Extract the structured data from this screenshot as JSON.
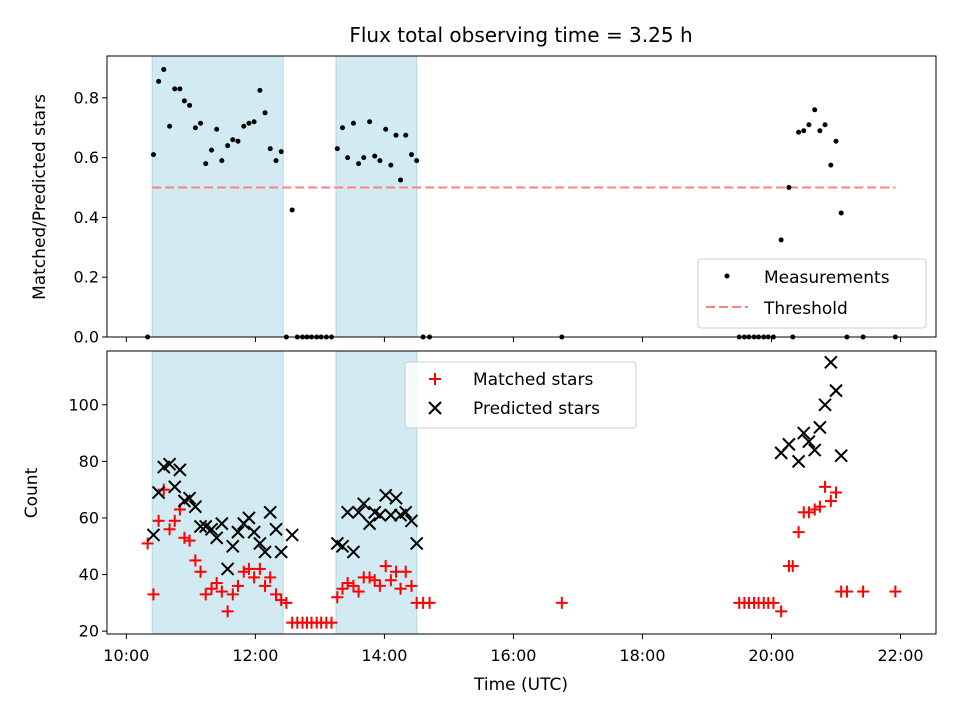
{
  "title": "Flux total observing time = 3.25 h",
  "colors": {
    "shade": "#add8e6",
    "measurement": "#000000",
    "threshold": "#ff8080",
    "matched": "#ff0000",
    "predicted": "#000000"
  },
  "chart_data": [
    {
      "type": "scatter",
      "panel": "top",
      "ylabel": "Matched/Predicted stars",
      "xlim": [
        9.7,
        22.55
      ],
      "ylim": [
        0,
        0.94
      ],
      "yticks": [
        0.0,
        0.2,
        0.4,
        0.6,
        0.8
      ],
      "ytick_labels": [
        "0.0",
        "0.2",
        "0.4",
        "0.6",
        "0.8"
      ],
      "shaded_intervals": [
        [
          10.4,
          12.43
        ],
        [
          13.25,
          14.5
        ]
      ],
      "threshold": {
        "name": "Threshold",
        "y": 0.5,
        "x_range": [
          10.4,
          21.92
        ]
      },
      "legend": {
        "placement": "lower right",
        "entries": [
          "Measurements",
          "Threshold"
        ]
      },
      "series": [
        {
          "name": "Measurements",
          "points": [
            [
              10.33,
              0.0
            ],
            [
              10.42,
              0.61
            ],
            [
              10.5,
              0.855
            ],
            [
              10.58,
              0.895
            ],
            [
              10.67,
              0.705
            ],
            [
              10.75,
              0.83
            ],
            [
              10.83,
              0.83
            ],
            [
              10.9,
              0.79
            ],
            [
              10.98,
              0.775
            ],
            [
              11.07,
              0.7
            ],
            [
              11.15,
              0.715
            ],
            [
              11.23,
              0.58
            ],
            [
              11.32,
              0.625
            ],
            [
              11.4,
              0.695
            ],
            [
              11.48,
              0.59
            ],
            [
              11.57,
              0.64
            ],
            [
              11.65,
              0.66
            ],
            [
              11.73,
              0.655
            ],
            [
              11.82,
              0.705
            ],
            [
              11.9,
              0.715
            ],
            [
              11.98,
              0.72
            ],
            [
              12.07,
              0.825
            ],
            [
              12.15,
              0.75
            ],
            [
              12.23,
              0.63
            ],
            [
              12.32,
              0.59
            ],
            [
              12.4,
              0.62
            ],
            [
              12.48,
              0.0
            ],
            [
              12.57,
              0.425
            ],
            [
              12.65,
              0.0
            ],
            [
              12.73,
              0.0
            ],
            [
              12.8,
              0.0
            ],
            [
              12.87,
              0.0
            ],
            [
              12.95,
              0.0
            ],
            [
              13.02,
              0.0
            ],
            [
              13.1,
              0.0
            ],
            [
              13.18,
              0.0
            ],
            [
              13.27,
              0.63
            ],
            [
              13.35,
              0.7
            ],
            [
              13.43,
              0.6
            ],
            [
              13.52,
              0.715
            ],
            [
              13.6,
              0.58
            ],
            [
              13.68,
              0.6
            ],
            [
              13.77,
              0.72
            ],
            [
              13.85,
              0.605
            ],
            [
              13.93,
              0.59
            ],
            [
              14.02,
              0.695
            ],
            [
              14.1,
              0.575
            ],
            [
              14.18,
              0.675
            ],
            [
              14.25,
              0.525
            ],
            [
              14.33,
              0.675
            ],
            [
              14.42,
              0.61
            ],
            [
              14.5,
              0.59
            ],
            [
              14.6,
              0.0
            ],
            [
              14.7,
              0.0
            ],
            [
              16.75,
              0.0
            ],
            [
              19.5,
              0.0
            ],
            [
              19.58,
              0.0
            ],
            [
              19.65,
              0.0
            ],
            [
              19.73,
              0.0
            ],
            [
              19.8,
              0.0
            ],
            [
              19.88,
              0.0
            ],
            [
              19.95,
              0.0
            ],
            [
              20.03,
              0.0
            ],
            [
              20.15,
              0.325
            ],
            [
              20.27,
              0.5
            ],
            [
              20.33,
              0.0
            ],
            [
              20.42,
              0.685
            ],
            [
              20.5,
              0.69
            ],
            [
              20.58,
              0.71
            ],
            [
              20.67,
              0.76
            ],
            [
              20.75,
              0.69
            ],
            [
              20.83,
              0.71
            ],
            [
              20.92,
              0.575
            ],
            [
              21.0,
              0.655
            ],
            [
              21.08,
              0.415
            ],
            [
              21.17,
              0.0
            ],
            [
              21.42,
              0.0
            ],
            [
              21.92,
              0.0
            ]
          ]
        }
      ]
    },
    {
      "type": "scatter",
      "panel": "bottom",
      "xlabel": "Time (UTC)",
      "ylabel": "Count",
      "xlim": [
        9.7,
        22.55
      ],
      "ylim": [
        19,
        119
      ],
      "xticks": [
        10,
        12,
        14,
        16,
        18,
        20,
        22
      ],
      "xtick_labels": [
        "10:00",
        "12:00",
        "14:00",
        "16:00",
        "18:00",
        "20:00",
        "22:00"
      ],
      "yticks": [
        20,
        40,
        60,
        80,
        100
      ],
      "ytick_labels": [
        "20",
        "40",
        "60",
        "80",
        "100"
      ],
      "shaded_intervals": [
        [
          10.4,
          12.43
        ],
        [
          13.25,
          14.5
        ]
      ],
      "legend": {
        "placement": "upper center",
        "entries": [
          "Matched stars",
          "Predicted stars"
        ]
      },
      "series": [
        {
          "name": "Matched stars",
          "marker": "plus",
          "points": [
            [
              10.33,
              51
            ],
            [
              10.42,
              33
            ],
            [
              10.5,
              59
            ],
            [
              10.58,
              70
            ],
            [
              10.67,
              56
            ],
            [
              10.75,
              59
            ],
            [
              10.83,
              63
            ],
            [
              10.9,
              53
            ],
            [
              10.98,
              52
            ],
            [
              11.07,
              45
            ],
            [
              11.15,
              41
            ],
            [
              11.23,
              33
            ],
            [
              11.32,
              35
            ],
            [
              11.4,
              37
            ],
            [
              11.48,
              34
            ],
            [
              11.57,
              27
            ],
            [
              11.65,
              33
            ],
            [
              11.73,
              36
            ],
            [
              11.82,
              41
            ],
            [
              11.9,
              42
            ],
            [
              11.98,
              39
            ],
            [
              12.07,
              42
            ],
            [
              12.15,
              36
            ],
            [
              12.23,
              39
            ],
            [
              12.32,
              33
            ],
            [
              12.4,
              31
            ],
            [
              12.48,
              30
            ],
            [
              12.57,
              23
            ],
            [
              12.65,
              23
            ],
            [
              12.73,
              23
            ],
            [
              12.8,
              23
            ],
            [
              12.87,
              23
            ],
            [
              12.95,
              23
            ],
            [
              13.02,
              23
            ],
            [
              13.1,
              23
            ],
            [
              13.18,
              23
            ],
            [
              13.27,
              32
            ],
            [
              13.35,
              35
            ],
            [
              13.43,
              37
            ],
            [
              13.52,
              36
            ],
            [
              13.6,
              34
            ],
            [
              13.68,
              39
            ],
            [
              13.77,
              39
            ],
            [
              13.85,
              38
            ],
            [
              13.93,
              36
            ],
            [
              14.02,
              43
            ],
            [
              14.1,
              38
            ],
            [
              14.18,
              41
            ],
            [
              14.25,
              35
            ],
            [
              14.33,
              41
            ],
            [
              14.42,
              36
            ],
            [
              14.5,
              30
            ],
            [
              14.6,
              30
            ],
            [
              14.7,
              30
            ],
            [
              16.75,
              30
            ],
            [
              19.5,
              30
            ],
            [
              19.58,
              30
            ],
            [
              19.65,
              30
            ],
            [
              19.73,
              30
            ],
            [
              19.8,
              30
            ],
            [
              19.88,
              30
            ],
            [
              19.95,
              30
            ],
            [
              20.03,
              30
            ],
            [
              20.15,
              27
            ],
            [
              20.27,
              43
            ],
            [
              20.33,
              43
            ],
            [
              20.42,
              55
            ],
            [
              20.5,
              62
            ],
            [
              20.58,
              62
            ],
            [
              20.67,
              63
            ],
            [
              20.75,
              64
            ],
            [
              20.83,
              71
            ],
            [
              20.92,
              66
            ],
            [
              21.0,
              69
            ],
            [
              21.08,
              34
            ],
            [
              21.17,
              34
            ],
            [
              21.42,
              34
            ],
            [
              21.92,
              34
            ]
          ]
        },
        {
          "name": "Predicted stars",
          "marker": "x",
          "points": [
            [
              10.42,
              54
            ],
            [
              10.5,
              69
            ],
            [
              10.58,
              78
            ],
            [
              10.67,
              79
            ],
            [
              10.75,
              71
            ],
            [
              10.83,
              77
            ],
            [
              10.9,
              66
            ],
            [
              10.98,
              67
            ],
            [
              11.07,
              64
            ],
            [
              11.15,
              57
            ],
            [
              11.23,
              57
            ],
            [
              11.32,
              56
            ],
            [
              11.4,
              53
            ],
            [
              11.48,
              58
            ],
            [
              11.57,
              42
            ],
            [
              11.65,
              50
            ],
            [
              11.73,
              55
            ],
            [
              11.82,
              58
            ],
            [
              11.9,
              60
            ],
            [
              11.98,
              55
            ],
            [
              12.07,
              51
            ],
            [
              12.15,
              48
            ],
            [
              12.23,
              62
            ],
            [
              12.32,
              56
            ],
            [
              12.4,
              48
            ],
            [
              12.57,
              54
            ],
            [
              13.27,
              51
            ],
            [
              13.35,
              50
            ],
            [
              13.43,
              62
            ],
            [
              13.52,
              48
            ],
            [
              13.6,
              62
            ],
            [
              13.68,
              65
            ],
            [
              13.77,
              58
            ],
            [
              13.85,
              62
            ],
            [
              13.93,
              61
            ],
            [
              14.02,
              68
            ],
            [
              14.1,
              61
            ],
            [
              14.18,
              67
            ],
            [
              14.25,
              61
            ],
            [
              14.33,
              62
            ],
            [
              14.42,
              59
            ],
            [
              14.5,
              51
            ],
            [
              20.15,
              83
            ],
            [
              20.27,
              86
            ],
            [
              20.42,
              80
            ],
            [
              20.5,
              90
            ],
            [
              20.58,
              87
            ],
            [
              20.67,
              84
            ],
            [
              20.75,
              92
            ],
            [
              20.83,
              100
            ],
            [
              20.92,
              115
            ],
            [
              21.0,
              105
            ],
            [
              21.08,
              82
            ]
          ]
        }
      ]
    }
  ]
}
